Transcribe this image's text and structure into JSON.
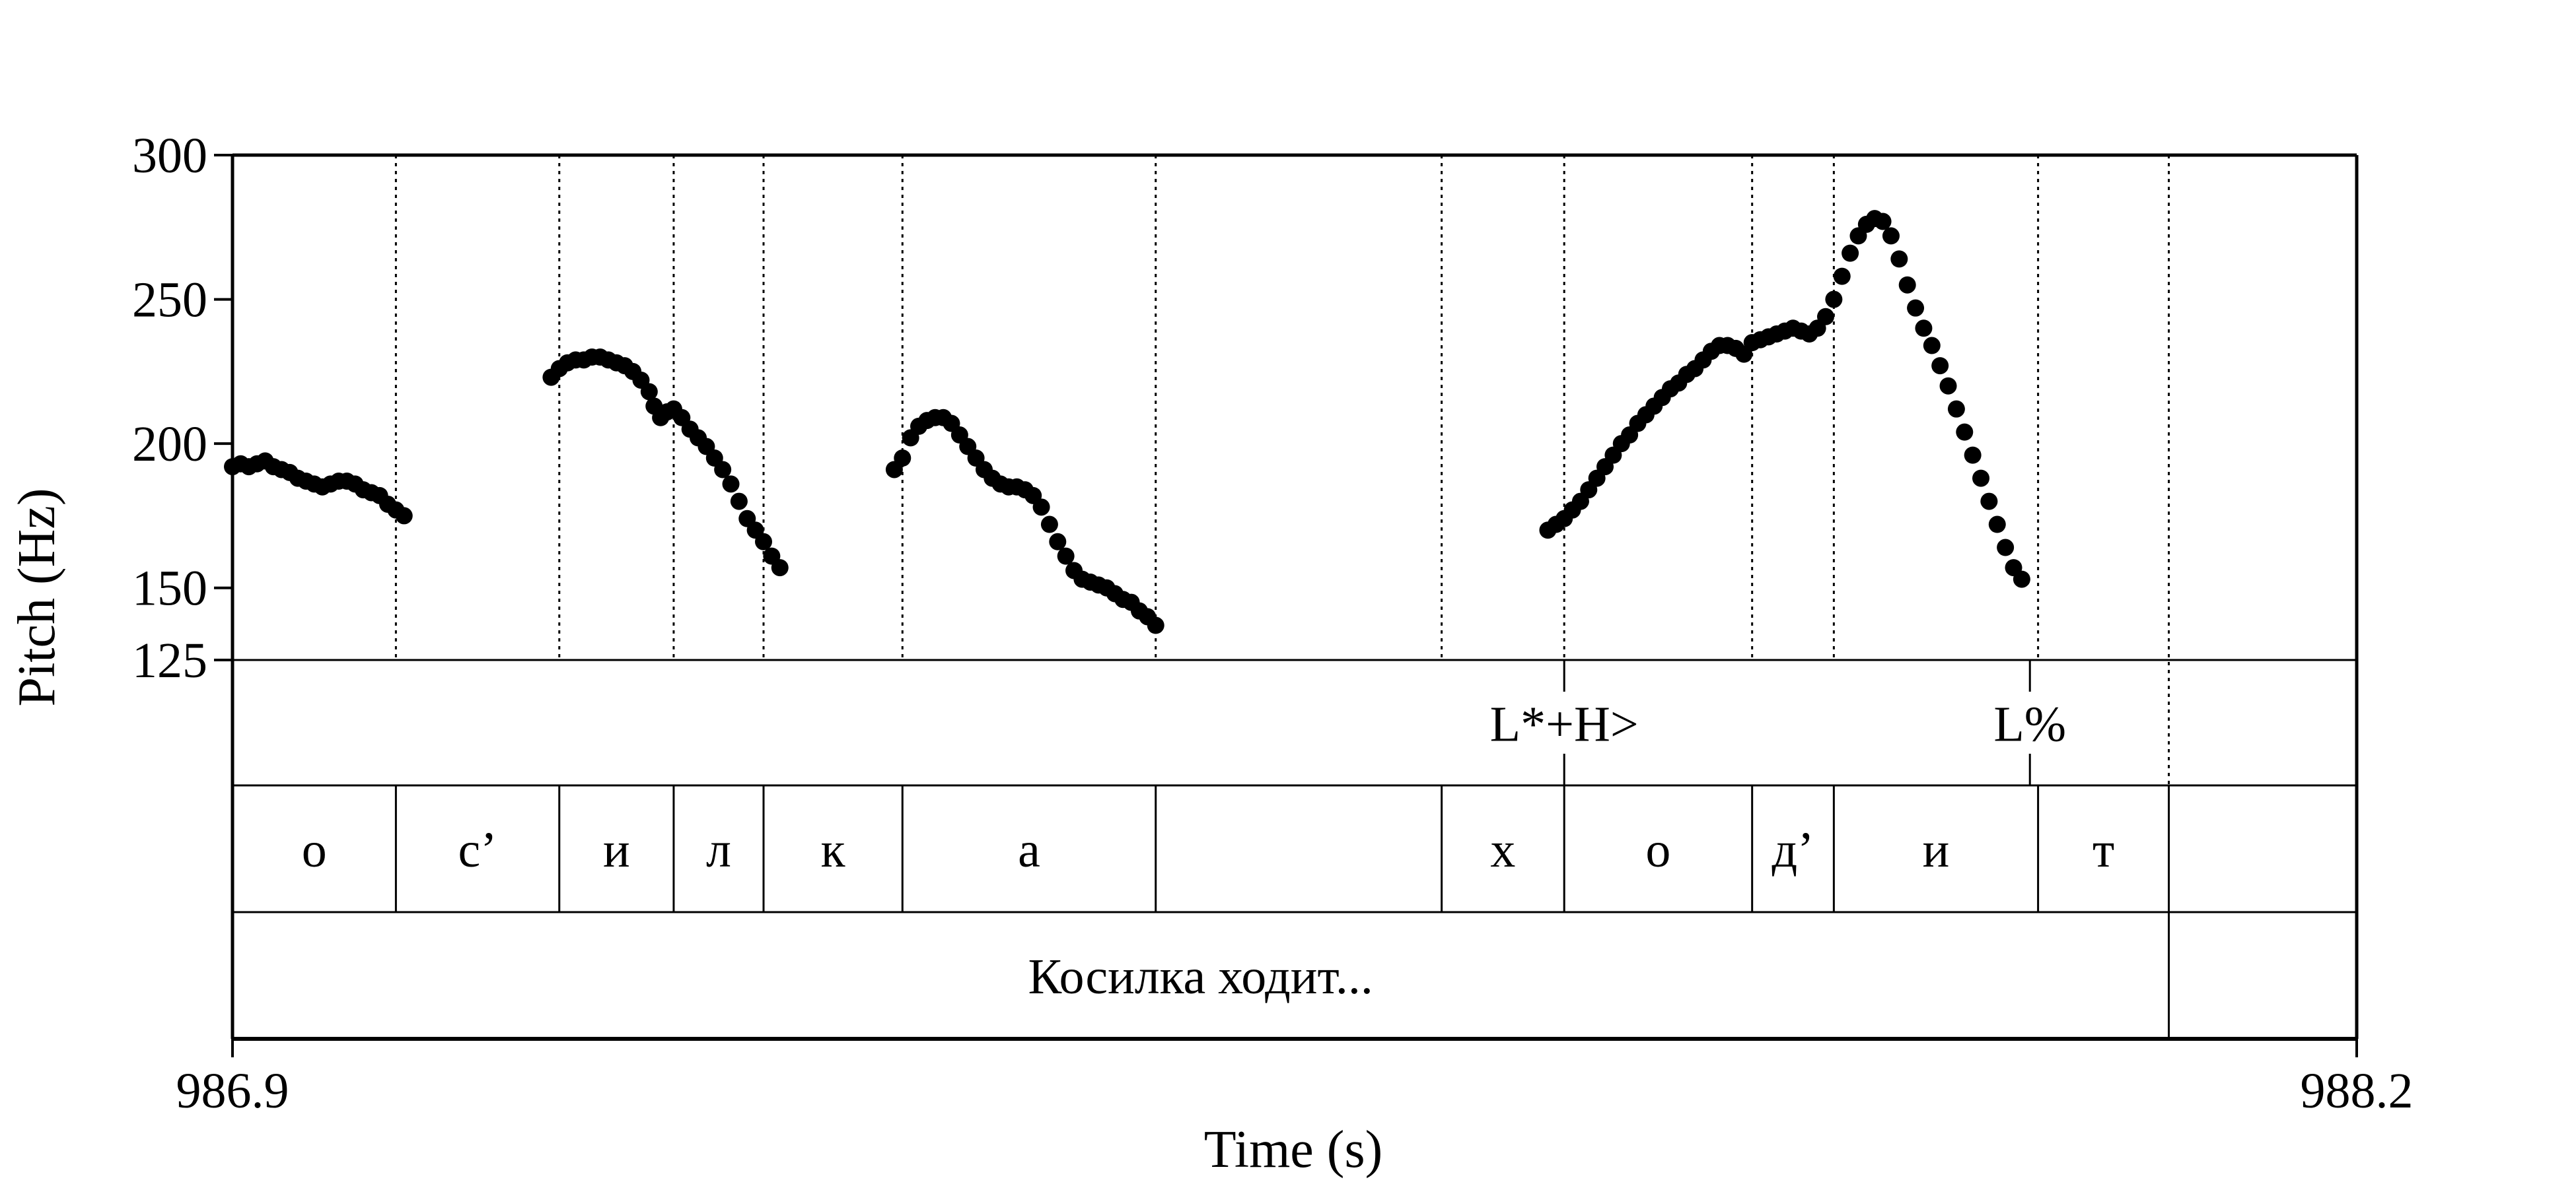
{
  "chart_data": {
    "type": "scatter",
    "xlabel": "Time (s)",
    "ylabel": "Pitch (Hz)",
    "xlim": [
      986.9,
      988.2
    ],
    "ylim": [
      125,
      300
    ],
    "x_tick_labels": [
      "986.9",
      "988.2"
    ],
    "y_ticks": [
      125,
      150,
      200,
      250,
      300
    ],
    "y_tick_labels": [
      "125",
      "150",
      "200",
      "250",
      "300"
    ],
    "grid": false,
    "point_color": "#000000",
    "series": [
      {
        "values": [
          [
            986.9,
            192
          ],
          [
            986.905,
            193
          ],
          [
            986.91,
            192
          ],
          [
            986.915,
            193
          ],
          [
            986.92,
            194
          ],
          [
            986.925,
            192
          ],
          [
            986.93,
            191
          ],
          [
            986.935,
            190
          ],
          [
            986.94,
            188
          ],
          [
            986.945,
            187
          ],
          [
            986.95,
            186
          ],
          [
            986.955,
            185
          ],
          [
            986.96,
            186
          ],
          [
            986.965,
            187
          ],
          [
            986.97,
            187
          ],
          [
            986.975,
            186
          ],
          [
            986.98,
            184
          ],
          [
            986.985,
            183
          ],
          [
            986.99,
            182
          ],
          [
            986.995,
            179
          ],
          [
            987.0,
            177
          ],
          [
            987.005,
            175
          ],
          [
            987.095,
            223
          ],
          [
            987.1,
            226
          ],
          [
            987.105,
            228
          ],
          [
            987.11,
            229
          ],
          [
            987.115,
            229
          ],
          [
            987.12,
            230
          ],
          [
            987.125,
            230
          ],
          [
            987.13,
            229
          ],
          [
            987.135,
            228
          ],
          [
            987.14,
            227
          ],
          [
            987.145,
            225
          ],
          [
            987.15,
            222
          ],
          [
            987.155,
            218
          ],
          [
            987.158,
            213
          ],
          [
            987.162,
            209
          ],
          [
            987.166,
            211
          ],
          [
            987.17,
            212
          ],
          [
            987.175,
            209
          ],
          [
            987.18,
            205
          ],
          [
            987.185,
            202
          ],
          [
            987.19,
            199
          ],
          [
            987.195,
            195
          ],
          [
            987.2,
            191
          ],
          [
            987.205,
            186
          ],
          [
            987.21,
            180
          ],
          [
            987.215,
            174
          ],
          [
            987.22,
            170
          ],
          [
            987.225,
            166
          ],
          [
            987.23,
            161
          ],
          [
            987.235,
            157
          ],
          [
            987.305,
            191
          ],
          [
            987.31,
            195
          ],
          [
            987.315,
            202
          ],
          [
            987.32,
            206
          ],
          [
            987.325,
            208
          ],
          [
            987.33,
            209
          ],
          [
            987.335,
            209
          ],
          [
            987.34,
            207
          ],
          [
            987.345,
            203
          ],
          [
            987.35,
            199
          ],
          [
            987.355,
            195
          ],
          [
            987.36,
            191
          ],
          [
            987.365,
            188
          ],
          [
            987.37,
            186
          ],
          [
            987.375,
            185
          ],
          [
            987.38,
            185
          ],
          [
            987.385,
            184
          ],
          [
            987.39,
            182
          ],
          [
            987.395,
            178
          ],
          [
            987.4,
            172
          ],
          [
            987.405,
            166
          ],
          [
            987.41,
            161
          ],
          [
            987.415,
            156
          ],
          [
            987.42,
            153
          ],
          [
            987.425,
            152
          ],
          [
            987.43,
            151
          ],
          [
            987.435,
            150
          ],
          [
            987.44,
            148
          ],
          [
            987.445,
            146
          ],
          [
            987.45,
            145
          ],
          [
            987.455,
            142
          ],
          [
            987.46,
            140
          ],
          [
            987.465,
            137
          ],
          [
            987.705,
            170
          ],
          [
            987.71,
            172
          ],
          [
            987.715,
            174
          ],
          [
            987.72,
            177
          ],
          [
            987.725,
            180
          ],
          [
            987.73,
            184
          ],
          [
            987.735,
            188
          ],
          [
            987.74,
            192
          ],
          [
            987.745,
            196
          ],
          [
            987.75,
            200
          ],
          [
            987.755,
            203
          ],
          [
            987.76,
            207
          ],
          [
            987.765,
            210
          ],
          [
            987.77,
            213
          ],
          [
            987.775,
            216
          ],
          [
            987.78,
            219
          ],
          [
            987.785,
            221
          ],
          [
            987.79,
            224
          ],
          [
            987.795,
            226
          ],
          [
            987.8,
            229
          ],
          [
            987.805,
            232
          ],
          [
            987.81,
            234
          ],
          [
            987.815,
            234
          ],
          [
            987.82,
            233
          ],
          [
            987.825,
            231
          ],
          [
            987.83,
            235
          ],
          [
            987.835,
            236
          ],
          [
            987.84,
            237
          ],
          [
            987.845,
            238
          ],
          [
            987.85,
            239
          ],
          [
            987.855,
            240
          ],
          [
            987.86,
            239
          ],
          [
            987.865,
            238
          ],
          [
            987.87,
            240
          ],
          [
            987.875,
            244
          ],
          [
            987.88,
            250
          ],
          [
            987.885,
            258
          ],
          [
            987.89,
            266
          ],
          [
            987.895,
            272
          ],
          [
            987.9,
            276
          ],
          [
            987.905,
            278
          ],
          [
            987.91,
            277
          ],
          [
            987.915,
            272
          ],
          [
            987.92,
            264
          ],
          [
            987.925,
            255
          ],
          [
            987.93,
            247
          ],
          [
            987.935,
            240
          ],
          [
            987.94,
            234
          ],
          [
            987.945,
            227
          ],
          [
            987.95,
            220
          ],
          [
            987.955,
            212
          ],
          [
            987.96,
            204
          ],
          [
            987.965,
            196
          ],
          [
            987.97,
            188
          ],
          [
            987.975,
            180
          ],
          [
            987.98,
            172
          ],
          [
            987.985,
            164
          ],
          [
            987.99,
            157
          ],
          [
            987.995,
            153
          ]
        ]
      }
    ],
    "boundaries": [
      987.0,
      987.1,
      987.17,
      987.225,
      987.31,
      987.465,
      987.64,
      987.715,
      987.83,
      987.88,
      988.005,
      988.085
    ],
    "tiers": [
      {
        "intervals": [],
        "points": [
          {
            "time": 987.715,
            "label": "L*+H>"
          },
          {
            "time": 988.0,
            "label": "L%"
          }
        ],
        "end": 988.085
      },
      {
        "intervals": [
          {
            "start": 986.9,
            "end": 987.0,
            "label": "о"
          },
          {
            "start": 987.0,
            "end": 987.1,
            "label": "с’"
          },
          {
            "start": 987.1,
            "end": 987.17,
            "label": "и"
          },
          {
            "start": 987.17,
            "end": 987.225,
            "label": "л"
          },
          {
            "start": 987.225,
            "end": 987.31,
            "label": "к"
          },
          {
            "start": 987.31,
            "end": 987.465,
            "label": "а"
          },
          {
            "start": 987.465,
            "end": 987.64,
            "label": ""
          },
          {
            "start": 987.64,
            "end": 987.715,
            "label": "х"
          },
          {
            "start": 987.715,
            "end": 987.83,
            "label": "о"
          },
          {
            "start": 987.83,
            "end": 987.88,
            "label": "д’"
          },
          {
            "start": 987.88,
            "end": 988.005,
            "label": "и"
          },
          {
            "start": 988.005,
            "end": 988.085,
            "label": "т"
          },
          {
            "start": 988.085,
            "end": 988.2,
            "label": ""
          }
        ]
      },
      {
        "intervals": [
          {
            "start": 986.9,
            "end": 988.085,
            "label": "Косилка ходит..."
          },
          {
            "start": 988.085,
            "end": 988.2,
            "label": ""
          }
        ]
      }
    ]
  }
}
